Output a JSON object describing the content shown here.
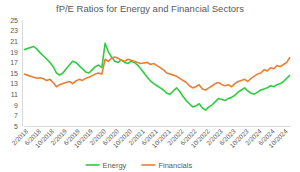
{
  "chart_data": {
    "type": "line",
    "title": "fP/E Ratios for Energy and Financial Sectors",
    "categories": [
      "2/2018",
      null,
      null,
      null,
      "6/2018",
      null,
      null,
      null,
      "10/2018",
      null,
      null,
      null,
      "2/2019",
      null,
      null,
      null,
      "6/2019",
      null,
      null,
      null,
      "10/2019",
      null,
      null,
      null,
      "2/2020",
      null,
      null,
      null,
      "6/2020",
      null,
      null,
      null,
      "10/2020",
      null,
      null,
      null,
      "2/2021",
      null,
      null,
      null,
      "6/2021",
      null,
      null,
      null,
      "10/2021",
      null,
      null,
      null,
      "2/2022",
      null,
      null,
      null,
      "6/2022",
      null,
      null,
      null,
      "10/2022",
      null,
      null,
      null,
      "2/2023",
      null,
      null,
      null,
      "6/2023",
      null,
      null,
      null,
      "10/2023",
      null,
      null,
      null,
      "2/2024",
      null,
      null,
      null,
      "6/2024",
      null,
      null,
      null,
      "10/2024",
      null,
      null
    ],
    "series": [
      {
        "name": "Energy",
        "color": "#2ecc40",
        "values": [
          19.4,
          19.6,
          19.8,
          20.0,
          19.5,
          18.8,
          18.2,
          17.6,
          17.0,
          16.2,
          15.0,
          14.6,
          15.0,
          15.8,
          16.5,
          17.2,
          17.0,
          16.4,
          15.8,
          15.2,
          15.0,
          15.6,
          16.2,
          16.5,
          16.0,
          20.6,
          19.0,
          18.0,
          17.2,
          17.0,
          17.5,
          17.0,
          16.8,
          17.2,
          17.0,
          16.5,
          15.8,
          15.0,
          14.2,
          13.5,
          13.0,
          12.6,
          12.2,
          11.8,
          11.2,
          11.0,
          11.6,
          12.2,
          11.5,
          10.6,
          9.8,
          9.2,
          8.6,
          8.8,
          9.2,
          8.4,
          8.0,
          8.6,
          9.0,
          9.6,
          10.2,
          10.0,
          9.8,
          10.2,
          10.4,
          10.8,
          11.4,
          11.8,
          12.2,
          11.6,
          11.2,
          11.0,
          11.4,
          11.8,
          12.0,
          12.2,
          12.6,
          12.4,
          12.8,
          13.0,
          13.4,
          14.0,
          14.6
        ]
      },
      {
        "name": "Financials",
        "color": "#ed7d31",
        "values": [
          14.8,
          14.6,
          14.4,
          14.2,
          14.0,
          14.1,
          13.9,
          13.6,
          13.8,
          13.2,
          12.4,
          12.8,
          13.0,
          13.2,
          13.4,
          13.0,
          13.5,
          13.8,
          13.6,
          14.0,
          14.2,
          14.5,
          14.8,
          15.0,
          14.8,
          17.6,
          17.2,
          17.8,
          18.0,
          17.8,
          17.4,
          17.2,
          17.6,
          17.4,
          17.2,
          17.0,
          16.8,
          16.9,
          17.0,
          16.6,
          16.8,
          16.4,
          16.0,
          15.6,
          15.0,
          14.8,
          14.6,
          14.4,
          14.0,
          13.6,
          13.2,
          12.6,
          12.2,
          12.4,
          12.8,
          12.0,
          11.8,
          12.2,
          12.6,
          13.0,
          13.2,
          12.8,
          12.6,
          12.8,
          12.4,
          13.0,
          13.4,
          13.6,
          13.8,
          13.4,
          14.0,
          14.4,
          14.8,
          15.0,
          15.6,
          15.4,
          16.0,
          15.8,
          16.4,
          16.2,
          16.6,
          17.0,
          18.0
        ]
      }
    ],
    "ylim": [
      5,
      25
    ],
    "yticks": [
      5,
      7,
      9,
      11,
      13,
      15,
      17,
      19,
      21,
      23,
      25
    ],
    "grid": false,
    "legend": "bottom"
  }
}
